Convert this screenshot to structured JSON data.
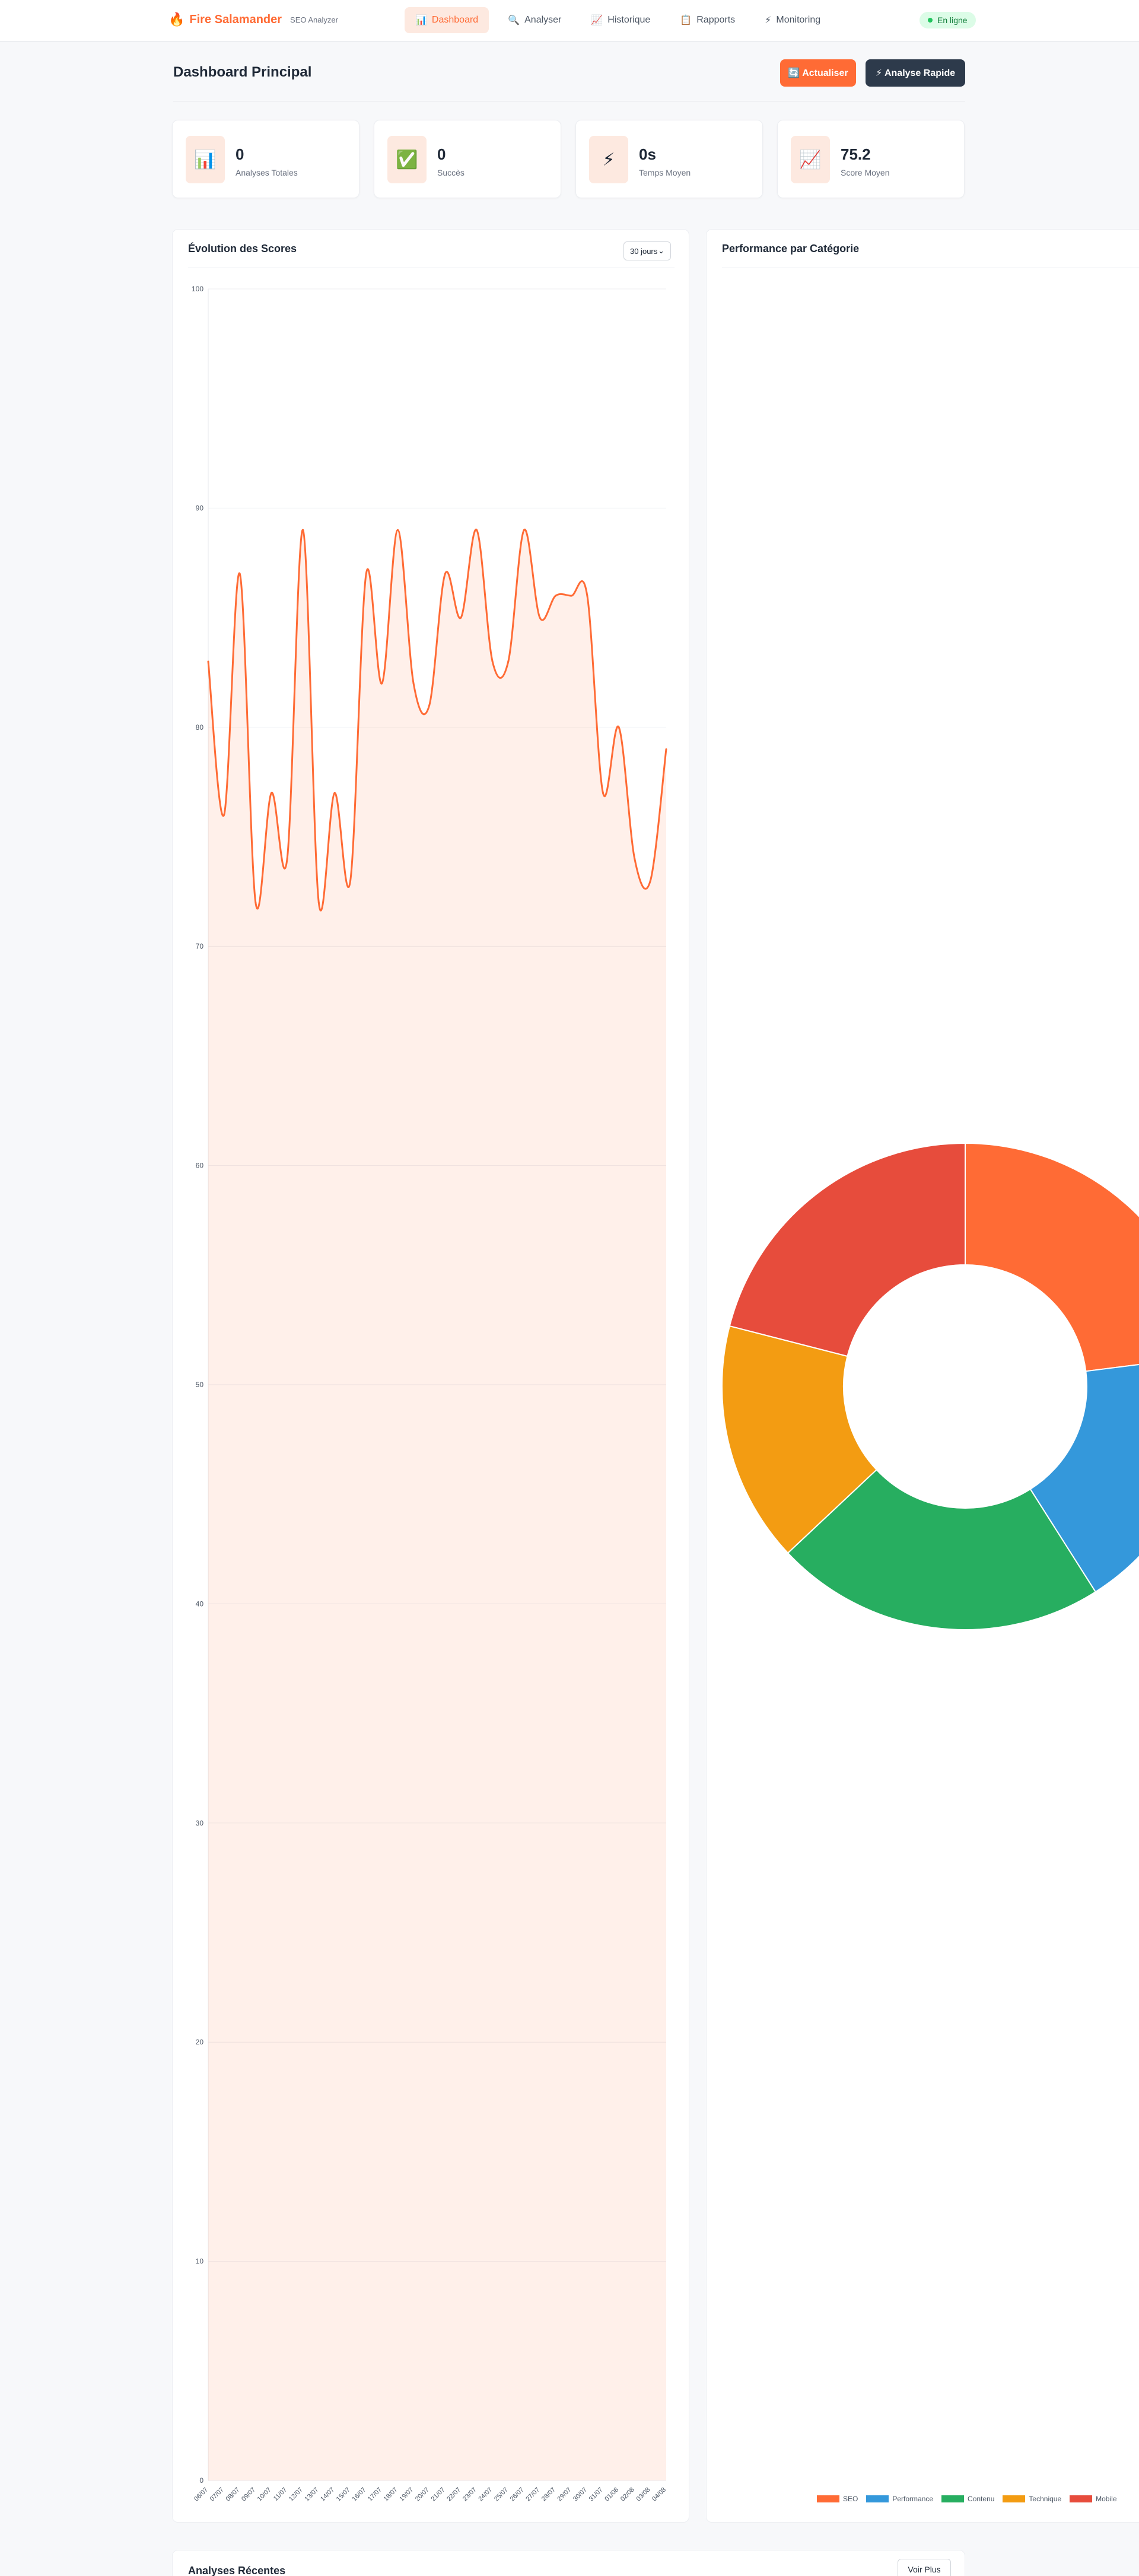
{
  "app": {
    "logo_icon": "flame-icon",
    "name": "Fire Salamander",
    "subtitle": "SEO Analyzer"
  },
  "nav": [
    {
      "label": "Dashboard",
      "icon": "📊",
      "icon_name": "bar-chart-icon",
      "active": true
    },
    {
      "label": "Analyser",
      "icon": "🔍",
      "icon_name": "search-icon",
      "active": false
    },
    {
      "label": "Historique",
      "icon": "📈",
      "icon_name": "trend-up-icon",
      "active": false
    },
    {
      "label": "Rapports",
      "icon": "📋",
      "icon_name": "clipboard-icon",
      "active": false
    },
    {
      "label": "Monitoring",
      "icon": "⚡",
      "icon_name": "lightning-icon",
      "active": false
    }
  ],
  "status": {
    "label": "En ligne",
    "color": "#22c55e"
  },
  "header": {
    "title": "Dashboard Principal",
    "refresh_label": "🔄 Actualiser",
    "quick_label": "⚡ Analyse Rapide"
  },
  "stats": [
    {
      "icon": "📊",
      "icon_name": "bar-chart-icon",
      "value": "0",
      "label": "Analyses Totales"
    },
    {
      "icon": "✅",
      "icon_name": "check-icon",
      "value": "0",
      "label": "Succès"
    },
    {
      "icon": "⚡",
      "icon_name": "lightning-icon",
      "value": "0s",
      "label": "Temps Moyen"
    },
    {
      "icon": "📈",
      "icon_name": "trend-up-icon",
      "value": "75.2",
      "label": "Score Moyen"
    }
  ],
  "score_panel": {
    "title": "Évolution des Scores",
    "range_value": "30 jours"
  },
  "category_panel": {
    "title": "Performance par Catégorie"
  },
  "recent": {
    "title": "Analyses Récentes",
    "more_label": "Voir Plus"
  },
  "colors": {
    "accent": "#ff6b35",
    "dark": "#2d3a4b"
  },
  "chart_data": [
    {
      "type": "line",
      "title": "Évolution des Scores",
      "x": [
        "06/07",
        "07/07",
        "08/07",
        "09/07",
        "10/07",
        "11/07",
        "12/07",
        "13/07",
        "14/07",
        "15/07",
        "16/07",
        "17/07",
        "18/07",
        "19/07",
        "20/07",
        "21/07",
        "22/07",
        "23/07",
        "24/07",
        "25/07",
        "26/07",
        "27/07",
        "28/07",
        "29/07",
        "30/07",
        "31/07",
        "01/08",
        "02/08",
        "03/08",
        "04/08"
      ],
      "series": [
        {
          "values": [
            83,
            76,
            87,
            72,
            77,
            74,
            89,
            72,
            77,
            73,
            87,
            82,
            89,
            82,
            81,
            87,
            85,
            89,
            83,
            83,
            89,
            85,
            86,
            86,
            86,
            77,
            80,
            74,
            73,
            79
          ],
          "color": "#ff6b35"
        }
      ],
      "ylim": [
        0,
        100
      ],
      "yticks": [
        0,
        10,
        20,
        30,
        40,
        50,
        60,
        70,
        80,
        90,
        100
      ],
      "grid": true,
      "fill": true
    },
    {
      "type": "pie",
      "variant": "doughnut",
      "title": "Performance par Catégorie",
      "categories": [
        "SEO",
        "Performance",
        "Contenu",
        "Technique",
        "Mobile"
      ],
      "values": [
        23,
        18,
        22,
        16,
        21
      ],
      "colors": [
        "#ff6b35",
        "#3498db",
        "#27ae60",
        "#f39c12",
        "#e74c3c"
      ],
      "legend": "bottom"
    }
  ]
}
